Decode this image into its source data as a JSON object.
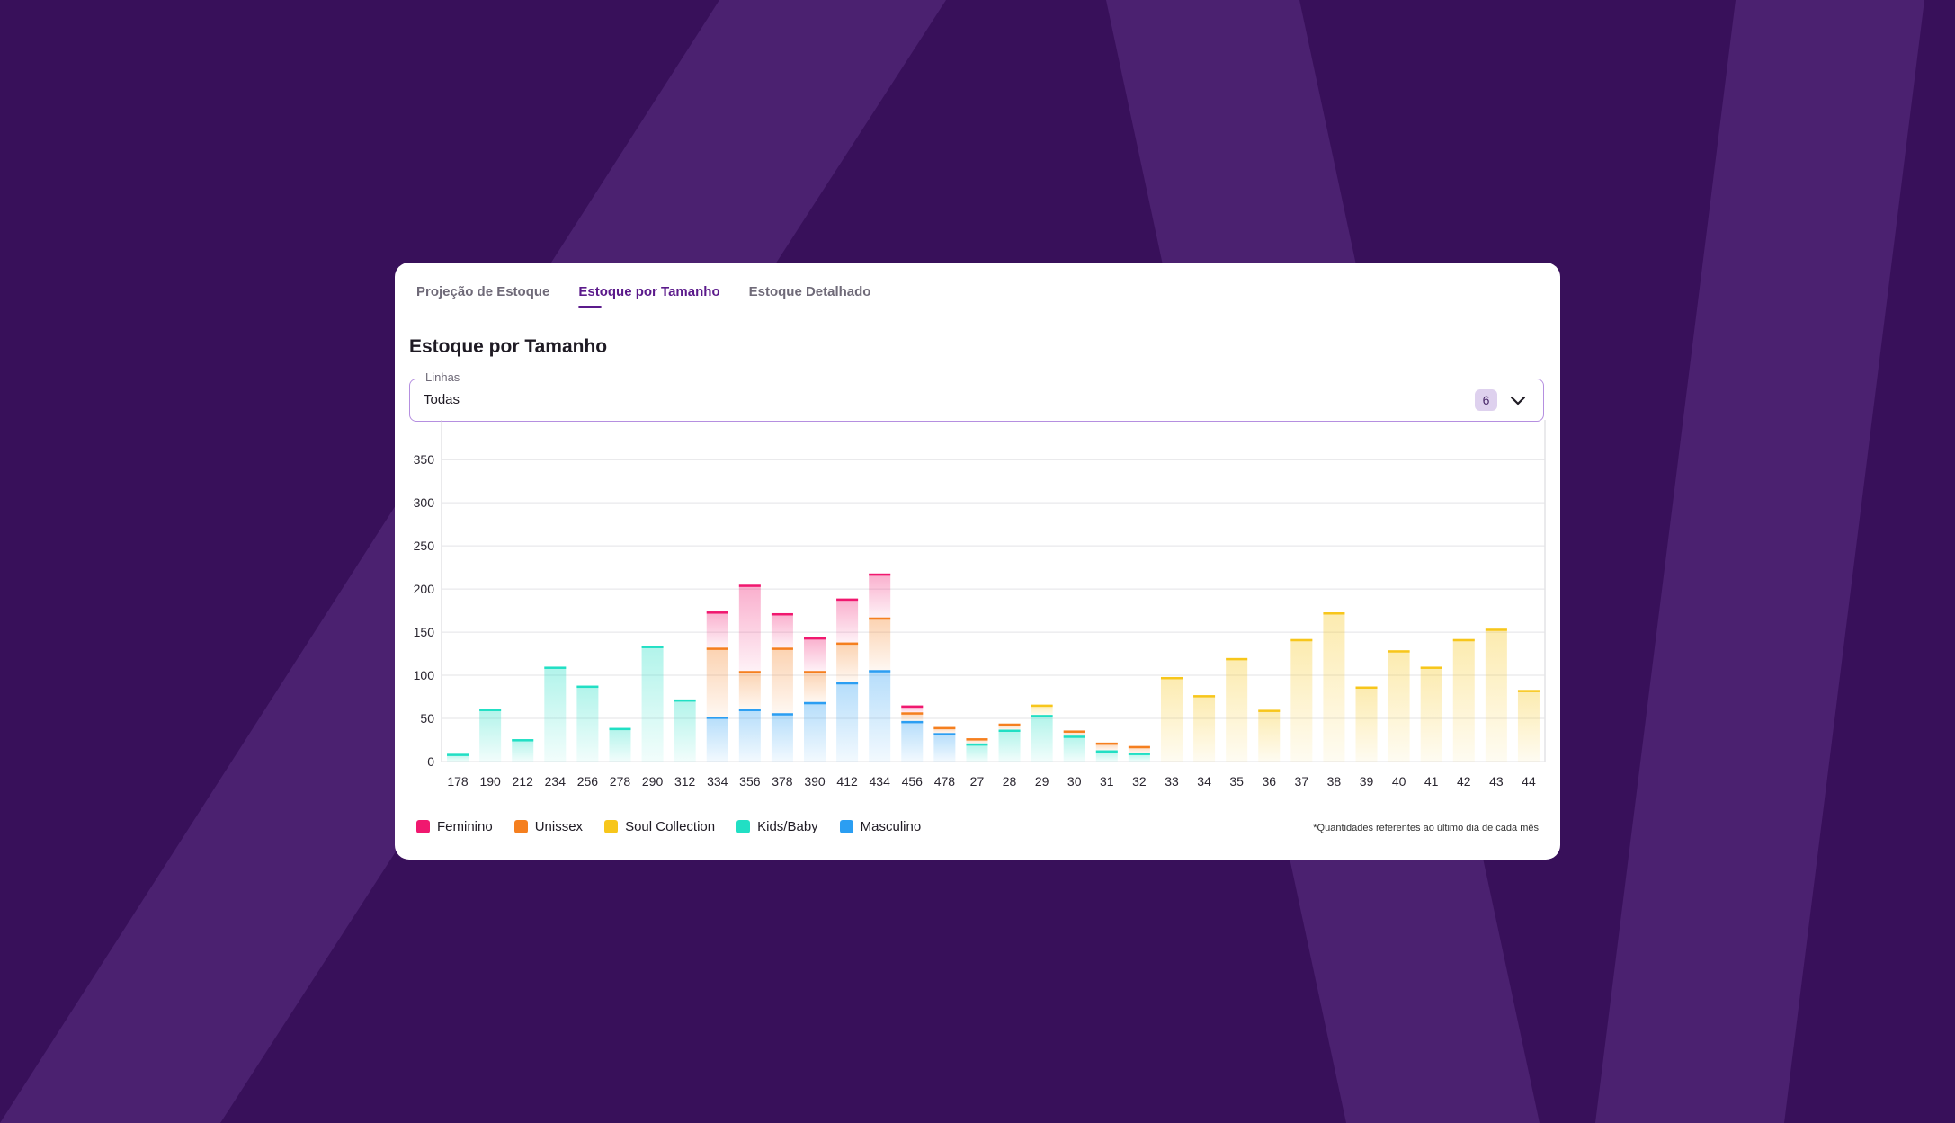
{
  "tabs": [
    {
      "label": "Projeção de Estoque",
      "active": false
    },
    {
      "label": "Estoque por Tamanho",
      "active": true
    },
    {
      "label": "Estoque Detalhado",
      "active": false
    }
  ],
  "panel_title": "Estoque por Tamanho",
  "filter": {
    "label": "Linhas",
    "value": "Todas",
    "count": "6",
    "icon": "chevron-down-icon"
  },
  "footnote": "*Quantidades referentes ao último dia de cada mês",
  "colors": {
    "background": "#38105a",
    "stripe": "#4b2170",
    "Feminino": "#f0186f",
    "Unissex": "#f57f1f",
    "Soul Collection": "#f7c61b",
    "Kids/Baby": "#21dfc4",
    "Masculino": "#2b9ef2"
  },
  "chart_data": {
    "type": "bar",
    "stacked": true,
    "categories": [
      "178",
      "190",
      "212",
      "234",
      "256",
      "278",
      "290",
      "312",
      "334",
      "356",
      "378",
      "390",
      "412",
      "434",
      "456",
      "478",
      "27",
      "28",
      "29",
      "30",
      "31",
      "32",
      "33",
      "34",
      "35",
      "36",
      "37",
      "38",
      "39",
      "40",
      "41",
      "42",
      "43",
      "44"
    ],
    "series": [
      {
        "name": "Masculino",
        "values": [
          0,
          0,
          0,
          0,
          0,
          0,
          0,
          0,
          52,
          61,
          56,
          69,
          92,
          106,
          47,
          33,
          0,
          0,
          0,
          0,
          0,
          0,
          0,
          0,
          0,
          0,
          0,
          0,
          0,
          0,
          0,
          0,
          0,
          0
        ]
      },
      {
        "name": "Kids/Baby",
        "values": [
          9,
          61,
          26,
          110,
          88,
          39,
          134,
          72,
          0,
          0,
          0,
          0,
          0,
          0,
          0,
          0,
          21,
          37,
          54,
          30,
          13,
          10,
          0,
          0,
          0,
          0,
          0,
          0,
          0,
          0,
          0,
          0,
          0,
          0
        ]
      },
      {
        "name": "Soul Collection",
        "values": [
          0,
          0,
          0,
          0,
          0,
          0,
          0,
          0,
          0,
          0,
          0,
          0,
          0,
          0,
          0,
          0,
          0,
          0,
          12,
          0,
          0,
          0,
          98,
          77,
          120,
          60,
          142,
          173,
          87,
          129,
          110,
          142,
          154,
          83
        ]
      },
      {
        "name": "Unissex",
        "values": [
          0,
          0,
          0,
          0,
          0,
          0,
          0,
          0,
          80,
          44,
          76,
          36,
          46,
          61,
          10,
          7,
          6,
          7,
          0,
          6,
          9,
          8,
          0,
          0,
          0,
          0,
          0,
          0,
          0,
          0,
          0,
          0,
          0,
          0
        ]
      },
      {
        "name": "Feminino",
        "values": [
          0,
          0,
          0,
          0,
          0,
          0,
          0,
          0,
          42,
          100,
          40,
          39,
          51,
          51,
          8,
          0,
          0,
          0,
          0,
          0,
          0,
          0,
          0,
          0,
          0,
          0,
          0,
          0,
          0,
          0,
          0,
          0,
          0,
          0
        ]
      }
    ],
    "legend_order": [
      "Feminino",
      "Unissex",
      "Soul Collection",
      "Kids/Baby",
      "Masculino"
    ],
    "yticks": [
      0,
      50,
      100,
      150,
      200,
      250,
      300,
      350
    ],
    "ylim": [
      0,
      370
    ],
    "grid": true,
    "legend_position": "bottom-left"
  }
}
